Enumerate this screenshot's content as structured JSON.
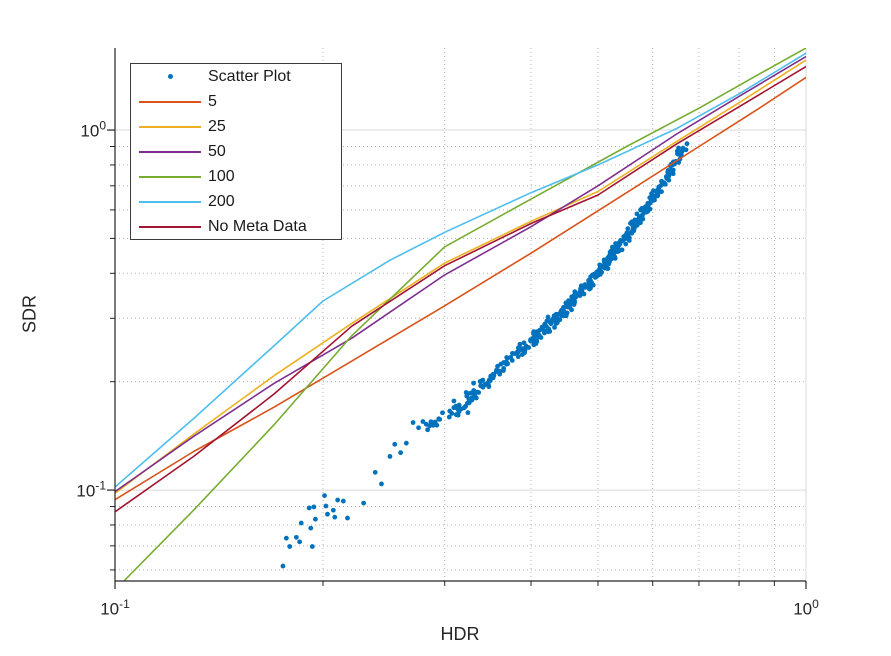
{
  "figure": {
    "background": "#ffffff",
    "text_color": "#262626",
    "axis_color": "#262626"
  },
  "axes": {
    "xlabel": "HDR",
    "ylabel": "SDR",
    "x_ticks": [
      {
        "base": "10",
        "exp": "-1"
      },
      {
        "base": "10",
        "exp": "0"
      }
    ],
    "y_ticks": [
      {
        "base": "10",
        "exp": "0"
      },
      {
        "base": "10",
        "exp": "-1"
      }
    ]
  },
  "legend": {
    "entries": [
      {
        "label": "Scatter Plot",
        "color": "#0072BD",
        "type": "marker"
      },
      {
        "label": "5",
        "color": "#D95319",
        "type": "line"
      },
      {
        "label": "25",
        "color": "#EDB120",
        "type": "line"
      },
      {
        "label": "50",
        "color": "#7E2F8E",
        "type": "line"
      },
      {
        "label": "100",
        "color": "#77AC30",
        "type": "line"
      },
      {
        "label": "200",
        "color": "#4DBEEE",
        "type": "line"
      },
      {
        "label": "No Meta Data",
        "color": "#A2142F",
        "type": "line"
      }
    ]
  },
  "chart_data": {
    "type": "scatter",
    "title": "",
    "xlabel": "HDR",
    "ylabel": "SDR",
    "x_scale": "log",
    "y_scale": "log",
    "xlim": [
      0.1,
      1.0
    ],
    "ylim": [
      0.0559,
      1.69
    ],
    "x_major_ticks": [
      0.1,
      1.0
    ],
    "x_minor_ticks": [
      0.2,
      0.3,
      0.4,
      0.5,
      0.6,
      0.7,
      0.8,
      0.9
    ],
    "y_major_ticks": [
      0.1,
      1.0
    ],
    "y_minor_ticks": [
      0.06,
      0.07,
      0.08,
      0.09,
      0.2,
      0.3,
      0.4,
      0.5,
      0.6,
      0.7,
      0.8,
      0.9
    ],
    "grid": {
      "major_color": "#d9d9d9",
      "minor_color": "#b3b3b3",
      "minor_style": "dotted"
    },
    "legend_position": "top-left-inside",
    "series": [
      {
        "name": "5",
        "color": "#D95319",
        "points": [
          [
            0.1,
            0.094
          ],
          [
            0.13,
            0.128
          ],
          [
            0.17,
            0.17
          ],
          [
            0.22,
            0.228
          ],
          [
            0.3,
            0.325
          ],
          [
            0.4,
            0.455
          ],
          [
            0.55,
            0.67
          ],
          [
            0.7,
            0.9
          ],
          [
            0.85,
            1.14
          ],
          [
            1.0,
            1.4
          ]
        ]
      },
      {
        "name": "25",
        "color": "#EDB120",
        "points": [
          [
            0.1,
            0.098
          ],
          [
            0.13,
            0.143
          ],
          [
            0.17,
            0.208
          ],
          [
            0.22,
            0.29
          ],
          [
            0.3,
            0.427
          ],
          [
            0.4,
            0.558
          ],
          [
            0.5,
            0.675
          ],
          [
            0.65,
            0.93
          ],
          [
            0.8,
            1.19
          ],
          [
            1.0,
            1.565
          ]
        ]
      },
      {
        "name": "50",
        "color": "#7E2F8E",
        "points": [
          [
            0.1,
            0.099
          ],
          [
            0.13,
            0.141
          ],
          [
            0.17,
            0.198
          ],
          [
            0.22,
            0.264
          ],
          [
            0.3,
            0.396
          ],
          [
            0.4,
            0.539
          ],
          [
            0.5,
            0.7
          ],
          [
            0.65,
            0.975
          ],
          [
            0.8,
            1.24
          ],
          [
            1.0,
            1.6
          ]
        ]
      },
      {
        "name": "100",
        "color": "#77AC30",
        "points": [
          [
            0.103,
            0.0559
          ],
          [
            0.13,
            0.088
          ],
          [
            0.17,
            0.152
          ],
          [
            0.22,
            0.268
          ],
          [
            0.3,
            0.474
          ],
          [
            0.4,
            0.643
          ],
          [
            0.55,
            0.9
          ],
          [
            0.7,
            1.15
          ],
          [
            0.85,
            1.42
          ],
          [
            1.0,
            1.69
          ]
        ]
      },
      {
        "name": "200",
        "color": "#4DBEEE",
        "points": [
          [
            0.1,
            0.102
          ],
          [
            0.13,
            0.158
          ],
          [
            0.17,
            0.252
          ],
          [
            0.2,
            0.335
          ],
          [
            0.25,
            0.435
          ],
          [
            0.3,
            0.52
          ],
          [
            0.4,
            0.67
          ],
          [
            0.5,
            0.8
          ],
          [
            0.65,
            1.01
          ],
          [
            0.8,
            1.26
          ],
          [
            1.0,
            1.635
          ]
        ]
      },
      {
        "name": "No Meta Data",
        "color": "#A2142F",
        "points": [
          [
            0.1,
            0.087
          ],
          [
            0.13,
            0.124
          ],
          [
            0.17,
            0.185
          ],
          [
            0.22,
            0.285
          ],
          [
            0.3,
            0.42
          ],
          [
            0.4,
            0.55
          ],
          [
            0.5,
            0.66
          ],
          [
            0.65,
            0.915
          ],
          [
            0.8,
            1.16
          ],
          [
            1.0,
            1.5
          ]
        ]
      }
    ],
    "scatter": {
      "name": "Scatter Plot",
      "color": "#0072BD",
      "marker_radius": 2.4,
      "sparse_points": [
        [
          0.175,
          0.0615
        ],
        [
          0.177,
          0.0735
        ],
        [
          0.179,
          0.0697
        ],
        [
          0.183,
          0.0739
        ],
        [
          0.185,
          0.0718
        ],
        [
          0.186,
          0.081
        ],
        [
          0.191,
          0.0892
        ],
        [
          0.192,
          0.0784
        ],
        [
          0.193,
          0.0697
        ],
        [
          0.194,
          0.0898
        ],
        [
          0.195,
          0.083
        ],
        [
          0.201,
          0.0965
        ],
        [
          0.202,
          0.0903
        ],
        [
          0.203,
          0.0857
        ],
        [
          0.207,
          0.0879
        ],
        [
          0.208,
          0.0841
        ],
        [
          0.21,
          0.0938
        ],
        [
          0.214,
          0.0932
        ],
        [
          0.217,
          0.0836
        ],
        [
          0.229,
          0.092
        ],
        [
          0.238,
          0.112
        ],
        [
          0.243,
          0.104
        ],
        [
          0.25,
          0.124
        ],
        [
          0.254,
          0.134
        ],
        [
          0.259,
          0.127
        ],
        [
          0.264,
          0.135
        ],
        [
          0.27,
          0.154
        ],
        [
          0.275,
          0.149
        ],
        [
          0.279,
          0.155
        ]
      ],
      "band": {
        "x_range": [
          0.28,
          0.668
        ],
        "count": 420,
        "density_bias": 0.7,
        "x_jitter": 0.004,
        "y_jitter": 0.009,
        "trend_anchors": [
          [
            0.28,
            0.145
          ],
          [
            0.32,
            0.175
          ],
          [
            0.36,
            0.215
          ],
          [
            0.4,
            0.26
          ],
          [
            0.44,
            0.305
          ],
          [
            0.48,
            0.365
          ],
          [
            0.52,
            0.44
          ],
          [
            0.56,
            0.53
          ],
          [
            0.6,
            0.64
          ],
          [
            0.63,
            0.745
          ],
          [
            0.655,
            0.85
          ],
          [
            0.668,
            0.9
          ]
        ]
      }
    }
  }
}
